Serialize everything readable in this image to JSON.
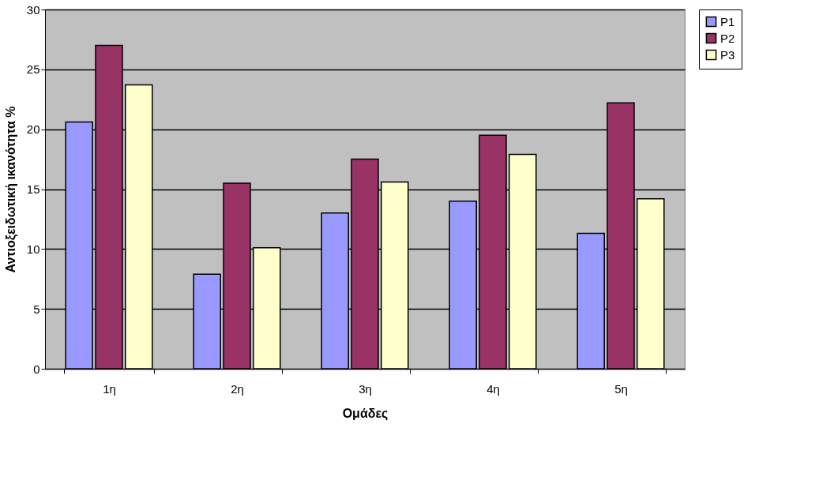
{
  "chart_data": {
    "type": "bar",
    "xlabel": "Ομάδες",
    "ylabel": "Αντιοξειδωτική ικανότητα %",
    "categories": [
      "1η",
      "2η",
      "3η",
      "4η",
      "5η"
    ],
    "series": [
      {
        "name": "P1",
        "color": "#9999ff",
        "values": [
          20.6,
          7.9,
          13.0,
          14.0,
          11.3
        ]
      },
      {
        "name": "P2",
        "color": "#993366",
        "values": [
          27.0,
          15.5,
          17.5,
          19.5,
          22.2
        ]
      },
      {
        "name": "P3",
        "color": "#ffffcc",
        "values": [
          23.7,
          10.1,
          15.6,
          17.9,
          14.2
        ]
      }
    ],
    "ylim": [
      0,
      30
    ],
    "yticks": [
      0,
      5,
      10,
      15,
      20,
      25,
      30
    ],
    "grid": "y",
    "legend": "right"
  }
}
